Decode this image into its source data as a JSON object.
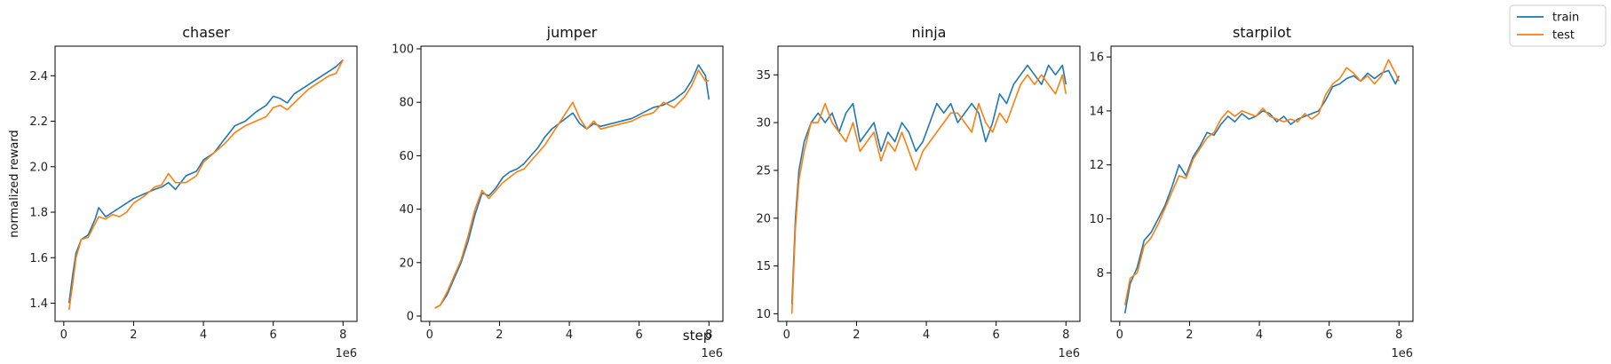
{
  "figure": {
    "xlabel": "step",
    "ylabel": "normalized reward",
    "legend": {
      "placement": "top-right",
      "entries": [
        {
          "name": "train",
          "color": "#1f77b4"
        },
        {
          "name": "test",
          "color": "#ff7f0e"
        }
      ]
    }
  },
  "chart_data": [
    {
      "type": "line",
      "title": "chaser",
      "xlabel": "",
      "ylabel": "normalized reward",
      "x_offset_label": "1e6",
      "xlim": [
        -0.25,
        8.4
      ],
      "ylim": [
        1.32,
        2.53
      ],
      "xticks": [
        0,
        2,
        4,
        6,
        8
      ],
      "yticks": [
        1.4,
        1.6,
        1.8,
        2.0,
        2.2,
        2.4
      ],
      "grid": false,
      "series": [
        {
          "name": "train",
          "color": "#1f77b4",
          "x": [
            0.15,
            0.25,
            0.35,
            0.5,
            0.7,
            0.9,
            1.0,
            1.2,
            1.4,
            1.6,
            1.8,
            2.0,
            2.3,
            2.6,
            2.8,
            3.0,
            3.2,
            3.5,
            3.8,
            4.0,
            4.3,
            4.6,
            4.9,
            5.2,
            5.5,
            5.8,
            6.0,
            6.2,
            6.4,
            6.6,
            6.8,
            7.0,
            7.2,
            7.4,
            7.6,
            7.8,
            8.0
          ],
          "y": [
            1.4,
            1.52,
            1.62,
            1.68,
            1.7,
            1.77,
            1.82,
            1.78,
            1.8,
            1.82,
            1.84,
            1.86,
            1.88,
            1.9,
            1.91,
            1.93,
            1.9,
            1.96,
            1.98,
            2.03,
            2.06,
            2.12,
            2.18,
            2.2,
            2.24,
            2.27,
            2.31,
            2.3,
            2.28,
            2.32,
            2.34,
            2.36,
            2.38,
            2.4,
            2.42,
            2.44,
            2.47
          ]
        },
        {
          "name": "test",
          "color": "#ff7f0e",
          "x": [
            0.15,
            0.25,
            0.35,
            0.5,
            0.7,
            0.9,
            1.0,
            1.2,
            1.4,
            1.6,
            1.8,
            2.0,
            2.3,
            2.6,
            2.8,
            3.0,
            3.2,
            3.5,
            3.8,
            4.0,
            4.3,
            4.6,
            4.9,
            5.2,
            5.5,
            5.8,
            6.0,
            6.2,
            6.4,
            6.6,
            6.8,
            7.0,
            7.2,
            7.4,
            7.6,
            7.8,
            8.0
          ],
          "y": [
            1.37,
            1.48,
            1.6,
            1.68,
            1.69,
            1.75,
            1.78,
            1.77,
            1.79,
            1.78,
            1.8,
            1.84,
            1.87,
            1.91,
            1.92,
            1.97,
            1.93,
            1.93,
            1.96,
            2.02,
            2.06,
            2.1,
            2.15,
            2.18,
            2.2,
            2.22,
            2.26,
            2.27,
            2.25,
            2.28,
            2.31,
            2.34,
            2.36,
            2.38,
            2.4,
            2.41,
            2.47
          ]
        }
      ]
    },
    {
      "type": "line",
      "title": "jumper",
      "xlabel": "",
      "ylabel": "",
      "x_offset_label": "1e6",
      "xlim": [
        -0.25,
        8.4
      ],
      "ylim": [
        -2,
        101
      ],
      "xticks": [
        0,
        2,
        4,
        6,
        8
      ],
      "yticks": [
        0,
        20,
        40,
        60,
        80,
        100
      ],
      "grid": false,
      "series": [
        {
          "name": "train",
          "color": "#1f77b4",
          "x": [
            0.15,
            0.3,
            0.5,
            0.7,
            0.9,
            1.1,
            1.3,
            1.5,
            1.7,
            1.9,
            2.1,
            2.3,
            2.5,
            2.7,
            2.9,
            3.1,
            3.3,
            3.5,
            3.7,
            3.9,
            4.1,
            4.3,
            4.5,
            4.7,
            4.9,
            5.2,
            5.5,
            5.8,
            6.1,
            6.4,
            6.7,
            7.0,
            7.3,
            7.5,
            7.7,
            7.9,
            8.0
          ],
          "y": [
            3,
            4,
            8,
            14,
            20,
            28,
            38,
            46,
            45,
            48,
            52,
            54,
            55,
            57,
            60,
            63,
            67,
            70,
            72,
            74,
            76,
            72,
            70,
            72,
            71,
            72,
            73,
            74,
            76,
            78,
            79,
            81,
            84,
            88,
            94,
            90,
            81
          ]
        },
        {
          "name": "test",
          "color": "#ff7f0e",
          "x": [
            0.15,
            0.3,
            0.5,
            0.7,
            0.9,
            1.1,
            1.3,
            1.5,
            1.7,
            1.9,
            2.1,
            2.3,
            2.5,
            2.7,
            2.9,
            3.1,
            3.3,
            3.5,
            3.7,
            3.9,
            4.1,
            4.3,
            4.5,
            4.7,
            4.9,
            5.2,
            5.5,
            5.8,
            6.1,
            6.4,
            6.7,
            7.0,
            7.3,
            7.5,
            7.7,
            7.9,
            8.0
          ],
          "y": [
            3,
            4,
            9,
            15,
            21,
            30,
            40,
            47,
            44,
            47,
            50,
            52,
            54,
            55,
            58,
            61,
            64,
            68,
            72,
            76,
            80,
            74,
            70,
            73,
            70,
            71,
            72,
            73,
            75,
            76,
            80,
            78,
            82,
            86,
            92,
            88,
            88
          ]
        }
      ]
    },
    {
      "type": "line",
      "title": "ninja",
      "xlabel": "",
      "ylabel": "",
      "x_offset_label": "1e6",
      "xlim": [
        -0.25,
        8.4
      ],
      "ylim": [
        9.2,
        38
      ],
      "xticks": [
        0,
        2,
        4,
        6,
        8
      ],
      "yticks": [
        10,
        15,
        20,
        25,
        30,
        35
      ],
      "grid": false,
      "series": [
        {
          "name": "train",
          "color": "#1f77b4",
          "x": [
            0.15,
            0.25,
            0.35,
            0.5,
            0.7,
            0.9,
            1.1,
            1.3,
            1.5,
            1.7,
            1.9,
            2.1,
            2.3,
            2.5,
            2.7,
            2.9,
            3.1,
            3.3,
            3.5,
            3.7,
            3.9,
            4.1,
            4.3,
            4.5,
            4.7,
            4.9,
            5.1,
            5.3,
            5.5,
            5.7,
            5.9,
            6.1,
            6.3,
            6.5,
            6.7,
            6.9,
            7.1,
            7.3,
            7.5,
            7.7,
            7.9,
            8.0
          ],
          "y": [
            11,
            20,
            25,
            28,
            30,
            31,
            30,
            31,
            29,
            31,
            32,
            28,
            29,
            30,
            27,
            29,
            28,
            30,
            29,
            27,
            28,
            30,
            32,
            31,
            32,
            30,
            31,
            32,
            31,
            28,
            30,
            33,
            32,
            34,
            35,
            36,
            35,
            34,
            36,
            35,
            36,
            34
          ]
        },
        {
          "name": "test",
          "color": "#ff7f0e",
          "x": [
            0.15,
            0.25,
            0.35,
            0.5,
            0.7,
            0.9,
            1.1,
            1.3,
            1.5,
            1.7,
            1.9,
            2.1,
            2.3,
            2.5,
            2.7,
            2.9,
            3.1,
            3.3,
            3.5,
            3.7,
            3.9,
            4.1,
            4.3,
            4.5,
            4.7,
            4.9,
            5.1,
            5.3,
            5.5,
            5.7,
            5.9,
            6.1,
            6.3,
            6.5,
            6.7,
            6.9,
            7.1,
            7.3,
            7.5,
            7.7,
            7.9,
            8.0
          ],
          "y": [
            10,
            19,
            24,
            27,
            30,
            30,
            32,
            30,
            29,
            28,
            30,
            27,
            28,
            29,
            26,
            28,
            27,
            29,
            27,
            25,
            27,
            28,
            29,
            30,
            31,
            31,
            30,
            29,
            32,
            30,
            29,
            31,
            30,
            32,
            34,
            35,
            34,
            35,
            34,
            33,
            35,
            33
          ]
        }
      ]
    },
    {
      "type": "line",
      "title": "starpilot",
      "xlabel": "",
      "ylabel": "",
      "x_offset_label": "1e6",
      "xlim": [
        -0.25,
        8.4
      ],
      "ylim": [
        6.2,
        16.4
      ],
      "xticks": [
        0,
        2,
        4,
        6,
        8
      ],
      "yticks": [
        8,
        10,
        12,
        14,
        16
      ],
      "grid": false,
      "series": [
        {
          "name": "train",
          "color": "#1f77b4",
          "x": [
            0.15,
            0.3,
            0.5,
            0.7,
            0.9,
            1.1,
            1.3,
            1.5,
            1.7,
            1.9,
            2.1,
            2.3,
            2.5,
            2.7,
            2.9,
            3.1,
            3.3,
            3.5,
            3.7,
            3.9,
            4.1,
            4.3,
            4.5,
            4.7,
            4.9,
            5.1,
            5.3,
            5.5,
            5.7,
            5.9,
            6.1,
            6.3,
            6.5,
            6.7,
            6.9,
            7.1,
            7.3,
            7.5,
            7.7,
            7.9,
            8.0
          ],
          "y": [
            6.5,
            7.6,
            8.2,
            9.2,
            9.5,
            10.0,
            10.5,
            11.2,
            12.0,
            11.6,
            12.3,
            12.7,
            13.2,
            13.1,
            13.5,
            13.8,
            13.6,
            13.9,
            13.7,
            13.8,
            14.0,
            13.9,
            13.6,
            13.8,
            13.5,
            13.7,
            13.8,
            13.9,
            14.0,
            14.4,
            14.9,
            15.0,
            15.2,
            15.3,
            15.1,
            15.4,
            15.2,
            15.4,
            15.5,
            15.0,
            15.3
          ]
        },
        {
          "name": "test",
          "color": "#ff7f0e",
          "x": [
            0.15,
            0.3,
            0.5,
            0.7,
            0.9,
            1.1,
            1.3,
            1.5,
            1.7,
            1.9,
            2.1,
            2.3,
            2.5,
            2.7,
            2.9,
            3.1,
            3.3,
            3.5,
            3.7,
            3.9,
            4.1,
            4.3,
            4.5,
            4.7,
            4.9,
            5.1,
            5.3,
            5.5,
            5.7,
            5.9,
            6.1,
            6.3,
            6.5,
            6.7,
            6.9,
            7.1,
            7.3,
            7.5,
            7.7,
            7.9,
            8.0
          ],
          "y": [
            6.8,
            7.8,
            8.0,
            9.0,
            9.3,
            9.8,
            10.4,
            11.0,
            11.6,
            11.5,
            12.2,
            12.6,
            13.0,
            13.2,
            13.7,
            14.0,
            13.8,
            14.0,
            13.9,
            13.8,
            14.1,
            13.8,
            13.7,
            13.6,
            13.7,
            13.6,
            13.9,
            13.7,
            13.9,
            14.6,
            15.0,
            15.2,
            15.6,
            15.4,
            15.1,
            15.3,
            15.0,
            15.3,
            15.9,
            15.4,
            15.1
          ]
        }
      ]
    }
  ]
}
